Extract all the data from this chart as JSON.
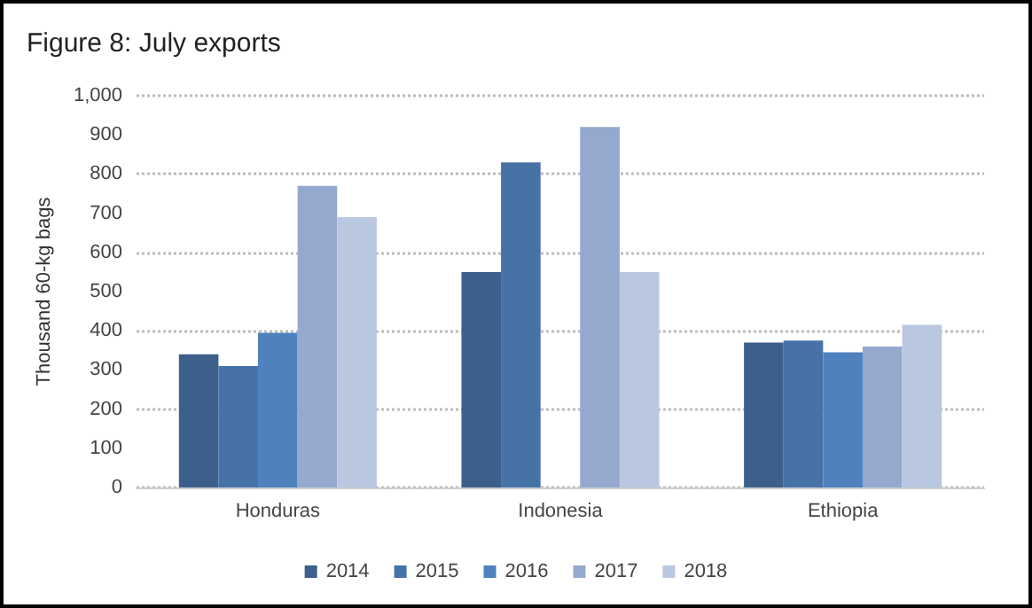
{
  "chart_data": {
    "type": "bar",
    "title": "Figure 8: July exports",
    "ylabel": "Thousand 60-kg bags",
    "categories": [
      "Honduras",
      "Indonesia",
      "Ethiopia"
    ],
    "series": [
      {
        "name": "2014",
        "color": "#3c5f8c",
        "values": [
          340,
          550,
          370
        ]
      },
      {
        "name": "2015",
        "color": "#4672a8",
        "values": [
          310,
          830,
          375
        ]
      },
      {
        "name": "2016",
        "color": "#4e81bd",
        "values": [
          395,
          null,
          345
        ]
      },
      {
        "name": "2017",
        "color": "#95a9cf",
        "values": [
          770,
          920,
          360
        ]
      },
      {
        "name": "2018",
        "color": "#bac7e0",
        "values": [
          690,
          550,
          415
        ]
      }
    ],
    "ylim": [
      0,
      1000
    ],
    "yticks": [
      0,
      100,
      200,
      300,
      400,
      500,
      600,
      700,
      800,
      900,
      {
        "value": 1000,
        "label": "1,000"
      }
    ],
    "grid": "y",
    "legend": "bottom"
  }
}
